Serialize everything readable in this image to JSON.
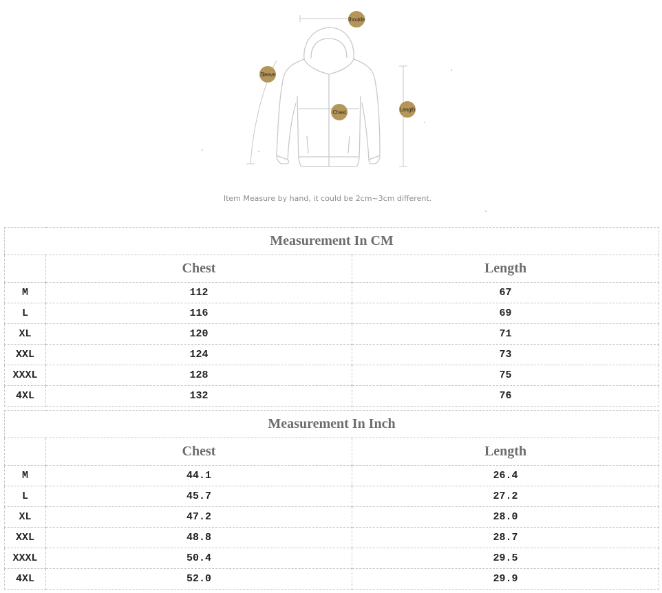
{
  "diagram": {
    "labels": {
      "shoulder": "Shoulder",
      "sleeve": "Sleeve",
      "chest": "Chest",
      "length": "Length"
    },
    "note": "Item Measure by hand, it could be 2cm~3cm different.",
    "badge_color": "#b4965a"
  },
  "tables": [
    {
      "title": "Measurement In CM",
      "headers": {
        "size": "",
        "chest": "Chest",
        "length": "Length"
      },
      "rows": [
        {
          "size": "M",
          "chest": "112",
          "length": "67"
        },
        {
          "size": "L",
          "chest": "116",
          "length": "69"
        },
        {
          "size": "XL",
          "chest": "120",
          "length": "71"
        },
        {
          "size": "XXL",
          "chest": "124",
          "length": "73"
        },
        {
          "size": "XXXL",
          "chest": "128",
          "length": "75"
        },
        {
          "size": "4XL",
          "chest": "132",
          "length": "76"
        }
      ]
    },
    {
      "title": "Measurement In Inch",
      "headers": {
        "size": "",
        "chest": "Chest",
        "length": "Length"
      },
      "rows": [
        {
          "size": "M",
          "chest": "44.1",
          "length": "26.4"
        },
        {
          "size": "L",
          "chest": "45.7",
          "length": "27.2"
        },
        {
          "size": "XL",
          "chest": "47.2",
          "length": "28.0"
        },
        {
          "size": "XXL",
          "chest": "48.8",
          "length": "28.7"
        },
        {
          "size": "XXXL",
          "chest": "50.4",
          "length": "29.5"
        },
        {
          "size": "4XL",
          "chest": "52.0",
          "length": "29.9"
        }
      ]
    }
  ]
}
